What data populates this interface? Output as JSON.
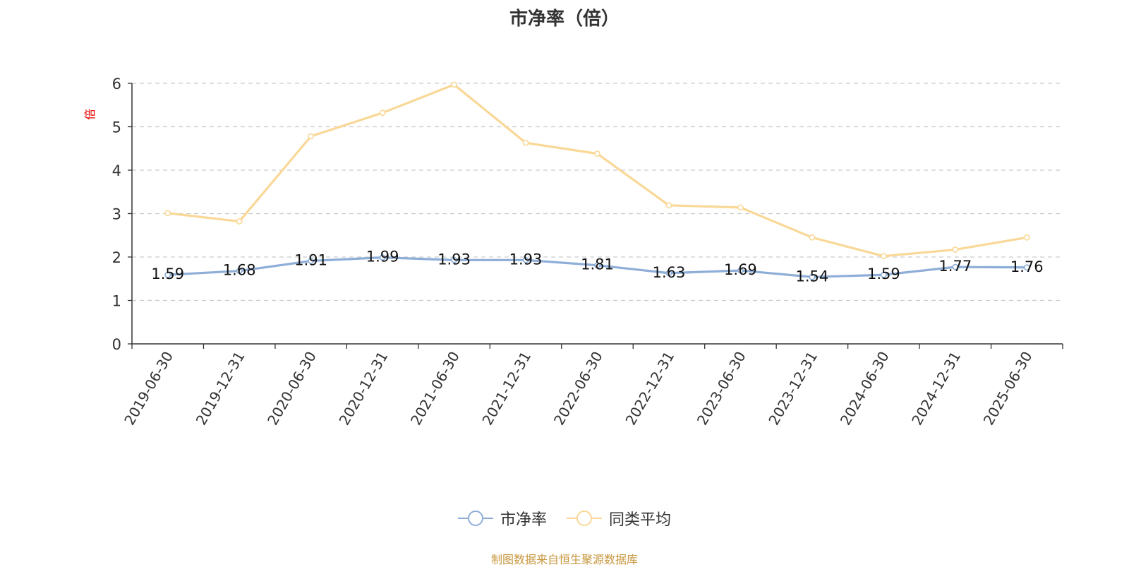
{
  "title": "市净率（倍）",
  "footer": "制图数据来自恒生聚源数据库",
  "chart_data": {
    "type": "line",
    "title": "市净率（倍）",
    "ylabel": "倍",
    "ylim": [
      0,
      6
    ],
    "yticks": [
      "0",
      "1",
      "2",
      "3",
      "4",
      "5",
      "6"
    ],
    "grid": true,
    "legend_position": "bottom",
    "categories": [
      "2019-06-30",
      "2019-12-31",
      "2020-06-30",
      "2020-12-31",
      "2021-06-30",
      "2021-12-31",
      "2022-06-30",
      "2022-12-31",
      "2023-06-30",
      "2023-12-31",
      "2024-06-30",
      "2024-12-31",
      "2025-06-30"
    ],
    "series": [
      {
        "name": "市净率",
        "color": "#8eaed8",
        "show_labels": true,
        "values": [
          1.59,
          1.68,
          1.91,
          1.99,
          1.93,
          1.93,
          1.81,
          1.63,
          1.69,
          1.54,
          1.59,
          1.77,
          1.76
        ]
      },
      {
        "name": "同类平均",
        "color": "#f9d897",
        "show_labels": false,
        "values": [
          3.01,
          2.82,
          4.78,
          5.32,
          5.97,
          4.63,
          4.38,
          3.19,
          3.14,
          2.45,
          2.02,
          2.17,
          2.45
        ]
      }
    ]
  }
}
